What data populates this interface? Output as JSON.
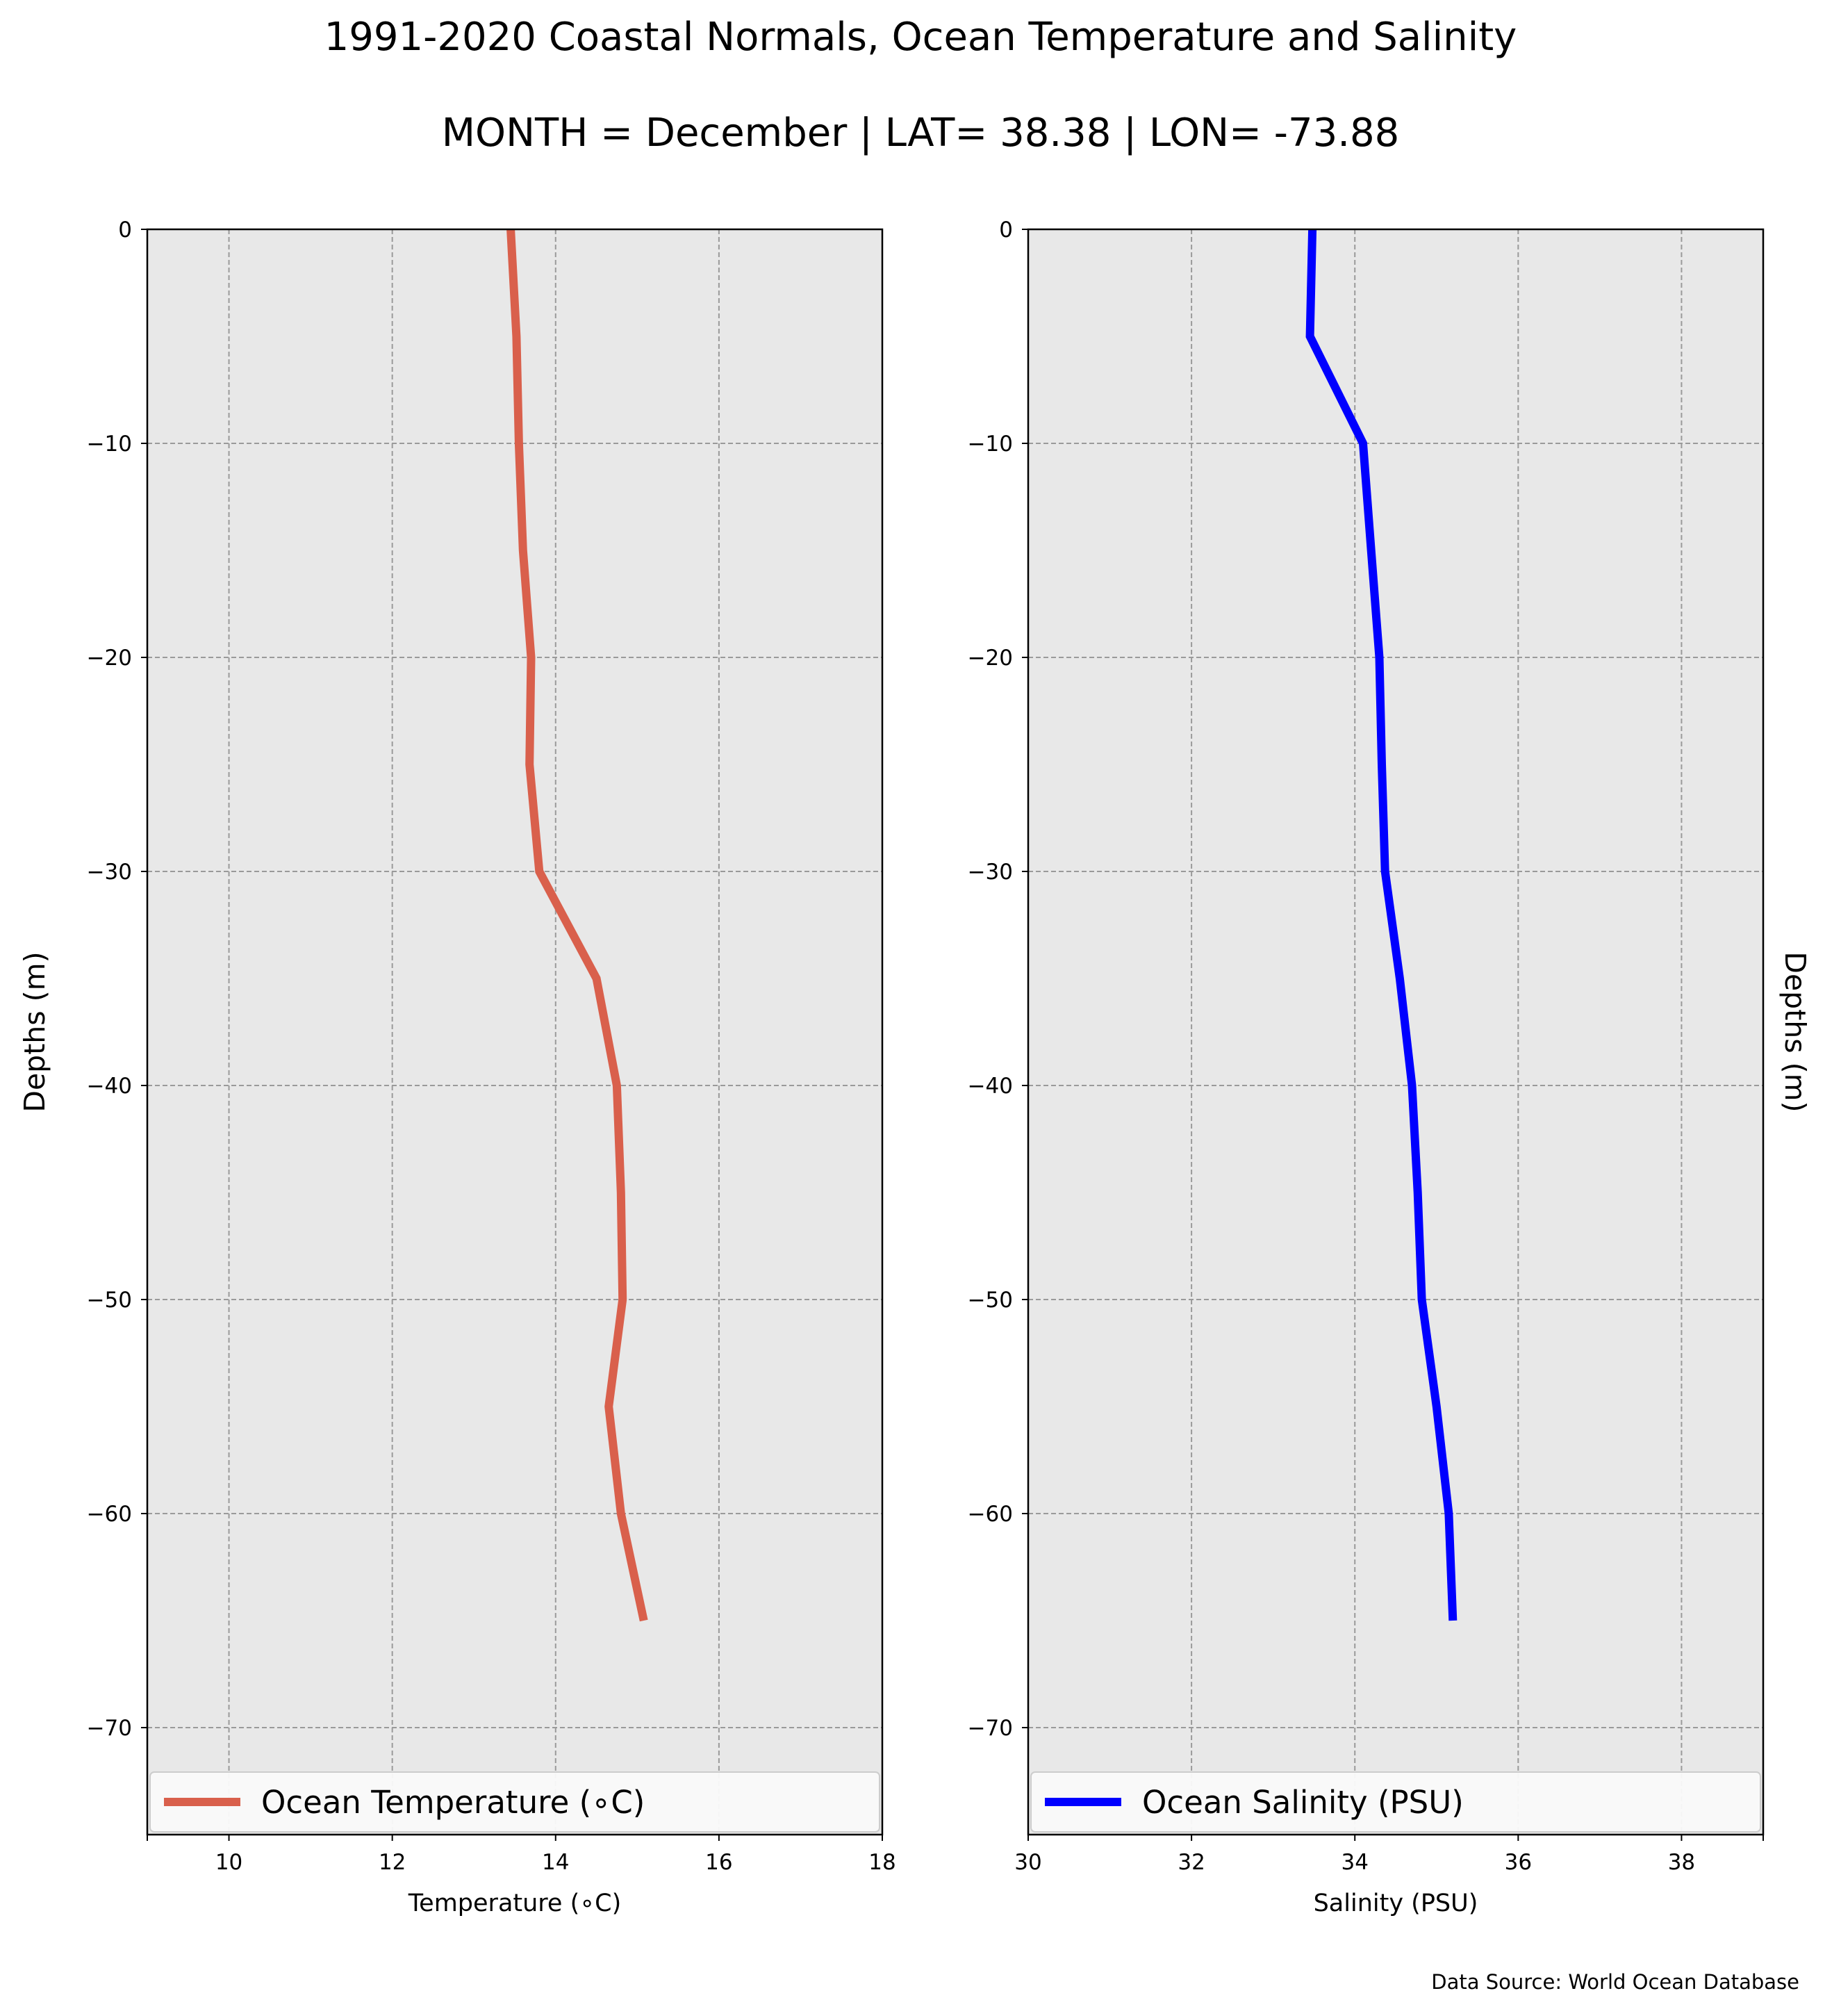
{
  "figure": {
    "title": "1991-2020 Coastal Normals, Ocean Temperature and Salinity",
    "subtitle": "MONTH = December | LAT= 38.38 | LON= -73.88",
    "source": "Data Source: World Ocean Database"
  },
  "chart_data": [
    {
      "type": "line",
      "xlabel": "Temperature (∘C)",
      "ylabel": "Depths (m)",
      "xlim": [
        9,
        18
      ],
      "ylim": [
        -75,
        0
      ],
      "xticks": [
        10,
        12,
        14,
        16,
        18
      ],
      "xticks_minor": [
        9
      ],
      "yticks": [
        0,
        -10,
        -20,
        -30,
        -40,
        -50,
        -60,
        -70
      ],
      "grid": true,
      "background": "#e8e8e8",
      "legend_placement": "bottom",
      "ylabel_side": "left",
      "series": [
        {
          "name": "Ocean Temperature (∘C)",
          "color": "#d9604c",
          "x": [
            13.45,
            13.52,
            13.55,
            13.6,
            13.7,
            13.68,
            13.8,
            14.5,
            14.75,
            14.8,
            14.82,
            14.65,
            14.8,
            15.08
          ],
          "y": [
            0,
            -5,
            -10,
            -15,
            -20,
            -25,
            -30,
            -35,
            -40,
            -45,
            -50,
            -55,
            -60,
            -65
          ]
        }
      ]
    },
    {
      "type": "line",
      "xlabel": "Salinity (PSU)",
      "ylabel": "Depths (m)",
      "xlim": [
        30,
        39
      ],
      "ylim": [
        -75,
        0
      ],
      "xticks": [
        30,
        32,
        34,
        36,
        38
      ],
      "xticks_minor": [
        39
      ],
      "yticks": [
        0,
        -10,
        -20,
        -30,
        -40,
        -50,
        -60,
        -70
      ],
      "grid": true,
      "background": "#e8e8e8",
      "legend_placement": "bottom",
      "ylabel_side": "right",
      "series": [
        {
          "name": "Ocean Salinity (PSU)",
          "color": "#0000ff",
          "x": [
            33.48,
            33.45,
            34.1,
            34.2,
            34.3,
            34.33,
            34.37,
            34.55,
            34.7,
            34.77,
            34.82,
            35.0,
            35.15,
            35.2
          ],
          "y": [
            0,
            -5,
            -10,
            -15,
            -20,
            -25,
            -30,
            -35,
            -40,
            -45,
            -50,
            -55,
            -60,
            -65
          ]
        }
      ]
    }
  ]
}
